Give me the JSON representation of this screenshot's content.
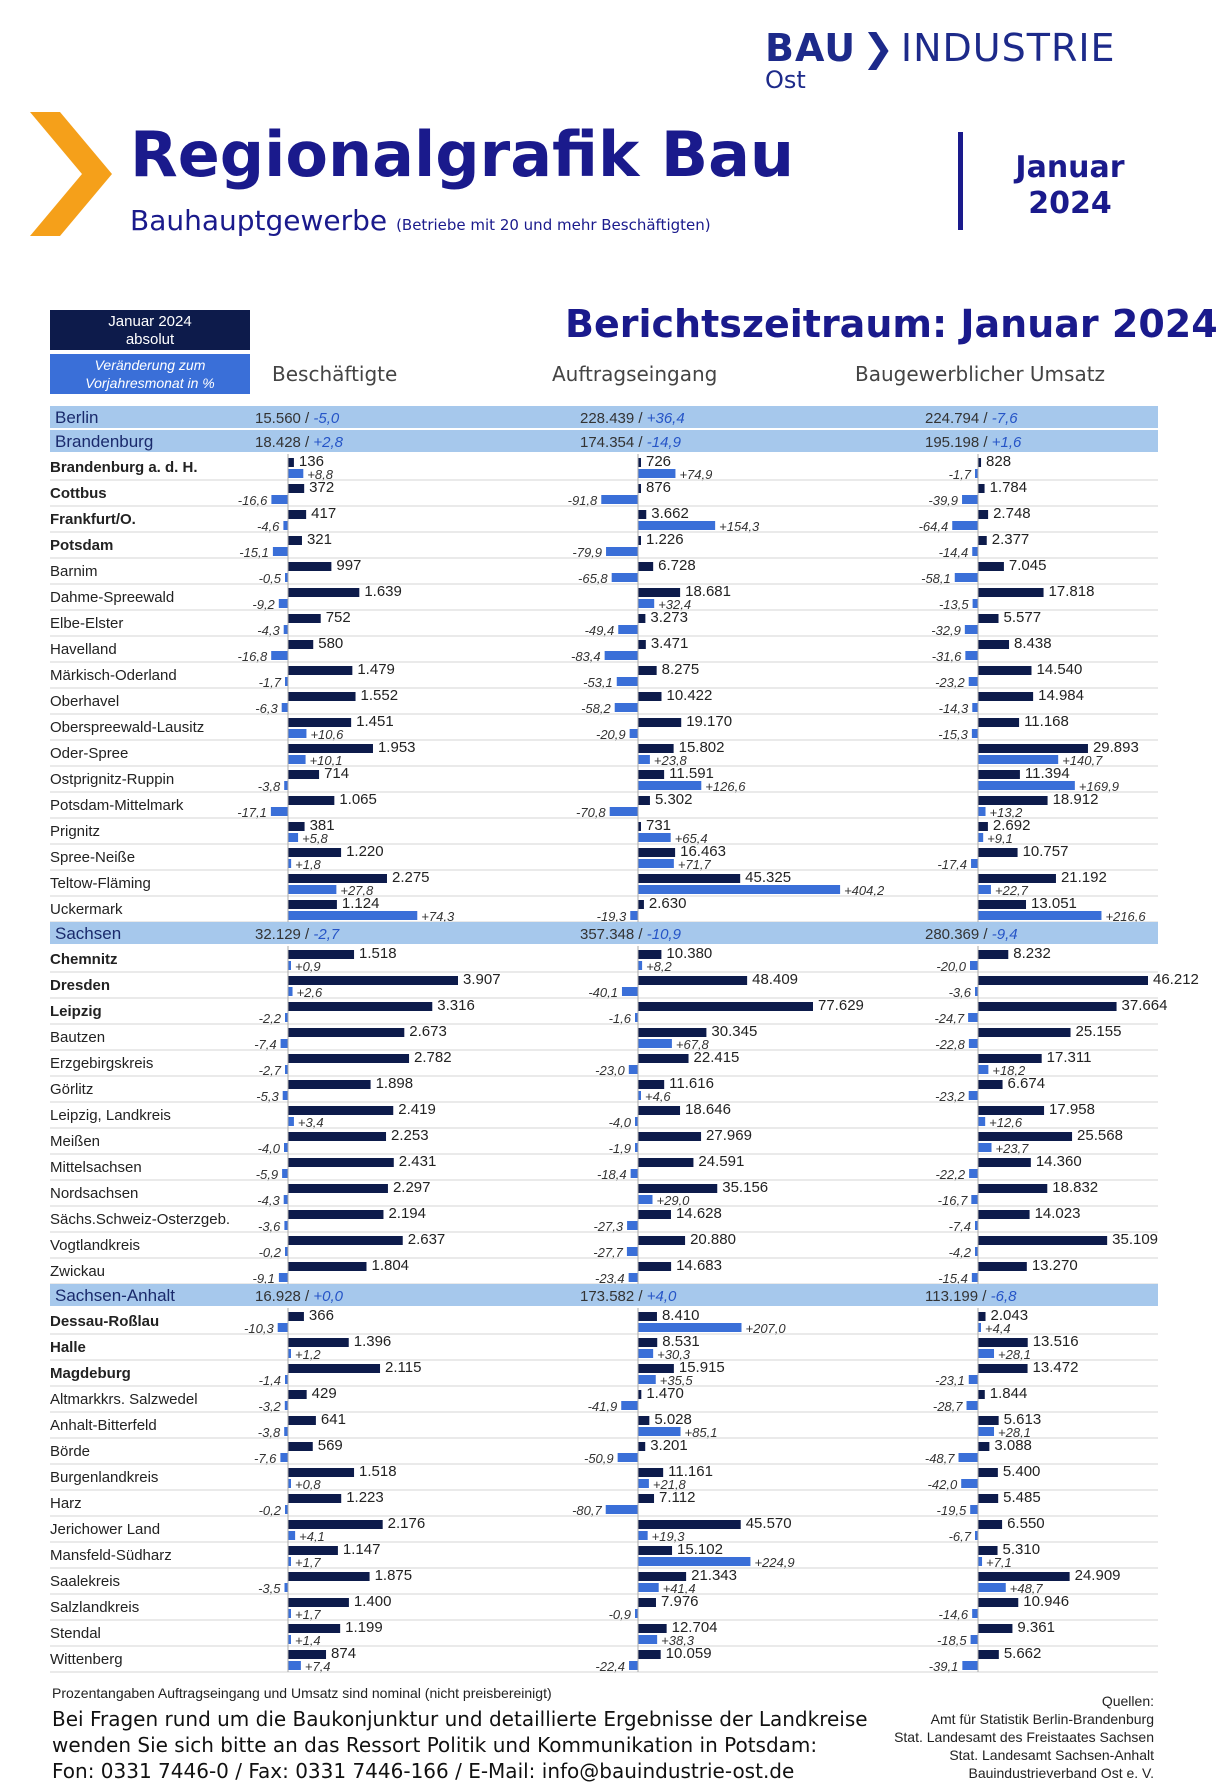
{
  "logo": {
    "brand_bold": "BAU",
    "brand_rest": "INDUSTRIE",
    "region": "Ost"
  },
  "header": {
    "title": "Regionalgrafik Bau",
    "subtitle": "Bauhauptgewerbe",
    "subtitle_note": "(Betriebe mit 20 und mehr Beschäftigten)",
    "month": "Januar",
    "year": "2024"
  },
  "legend": {
    "absolute_line1": "Januar 2024",
    "absolute_line2": "absolut",
    "change_line1": "Veränderung zum",
    "change_line2": "Vorjahresmonat in %"
  },
  "period": "Berichtszeitraum: Januar 2024",
  "columns": [
    "Beschäftigte",
    "Auftragseingang",
    "Baugewerblicher Umsatz"
  ],
  "colors": {
    "absolute": "#0d1b4b",
    "change": "#3a6fd8",
    "state_band": "#a6c8ec",
    "change_text": "#2554c7"
  },
  "chart_data": {
    "type": "bar",
    "description_units": "value = absolute Januar 2024; change = Veränderung zum Vorjahresmonat in %",
    "states": [
      {
        "name": "Berlin",
        "values": [
          "15.560",
          "228.439",
          "224.794"
        ],
        "changes": [
          "-5,0",
          "+36,4",
          "-7,6"
        ]
      },
      {
        "name": "Brandenburg",
        "values": [
          "18.428",
          "174.354",
          "195.198"
        ],
        "changes": [
          "+2,8",
          "-14,9",
          "+1,6"
        ],
        "districts": [
          {
            "name": "Brandenburg a. d. H.",
            "bold": true,
            "b": [
              136,
              8.8
            ],
            "a": [
              726,
              74.9
            ],
            "u": [
              828,
              -1.7
            ]
          },
          {
            "name": "Cottbus",
            "bold": true,
            "b": [
              372,
              -16.6
            ],
            "a": [
              876,
              -91.8
            ],
            "u": [
              1784,
              -39.9
            ]
          },
          {
            "name": "Frankfurt/O.",
            "bold": true,
            "b": [
              417,
              -4.6
            ],
            "a": [
              3662,
              154.3
            ],
            "u": [
              2748,
              -64.4
            ]
          },
          {
            "name": "Potsdam",
            "bold": true,
            "b": [
              321,
              -15.1
            ],
            "a": [
              1226,
              -79.9
            ],
            "u": [
              2377,
              -14.4
            ]
          },
          {
            "name": "Barnim",
            "b": [
              997,
              -0.5
            ],
            "a": [
              6728,
              -65.8
            ],
            "u": [
              7045,
              -58.1
            ]
          },
          {
            "name": "Dahme-Spreewald",
            "b": [
              1639,
              -9.2
            ],
            "a": [
              18681,
              32.4
            ],
            "u": [
              17818,
              -13.5
            ]
          },
          {
            "name": "Elbe-Elster",
            "b": [
              752,
              -4.3
            ],
            "a": [
              3273,
              -49.4
            ],
            "u": [
              5577,
              -32.9
            ]
          },
          {
            "name": "Havelland",
            "b": [
              580,
              -16.8
            ],
            "a": [
              3471,
              -83.4
            ],
            "u": [
              8438,
              -31.6
            ]
          },
          {
            "name": "Märkisch-Oderland",
            "b": [
              1479,
              -1.7
            ],
            "a": [
              8275,
              -53.1
            ],
            "u": [
              14540,
              -23.2
            ]
          },
          {
            "name": "Oberhavel",
            "b": [
              1552,
              -6.3
            ],
            "a": [
              10422,
              -58.2
            ],
            "u": [
              14984,
              -14.3
            ]
          },
          {
            "name": "Oberspreewald-Lausitz",
            "b": [
              1451,
              10.6
            ],
            "a": [
              19170,
              -20.9
            ],
            "u": [
              11168,
              -15.3
            ]
          },
          {
            "name": "Oder-Spree",
            "b": [
              1953,
              10.1
            ],
            "a": [
              15802,
              23.8
            ],
            "u": [
              29893,
              140.7
            ]
          },
          {
            "name": "Ostprignitz-Ruppin",
            "b": [
              714,
              -3.8
            ],
            "a": [
              11591,
              126.6
            ],
            "u": [
              11394,
              169.9
            ]
          },
          {
            "name": "Potsdam-Mittelmark",
            "b": [
              1065,
              -17.1
            ],
            "a": [
              5302,
              -70.8
            ],
            "u": [
              18912,
              13.2
            ]
          },
          {
            "name": "Prignitz",
            "b": [
              381,
              5.8
            ],
            "a": [
              731,
              65.4
            ],
            "u": [
              2692,
              9.1
            ]
          },
          {
            "name": "Spree-Neiße",
            "b": [
              1220,
              1.8
            ],
            "a": [
              16463,
              71.7
            ],
            "u": [
              10757,
              -17.4
            ]
          },
          {
            "name": "Teltow-Fläming",
            "b": [
              2275,
              27.8
            ],
            "a": [
              45325,
              404.2
            ],
            "u": [
              21192,
              22.7
            ]
          },
          {
            "name": "Uckermark",
            "b": [
              1124,
              74.3
            ],
            "a": [
              2630,
              -19.3
            ],
            "u": [
              13051,
              216.6
            ]
          }
        ]
      },
      {
        "name": "Sachsen",
        "values": [
          "32.129",
          "357.348",
          "280.369"
        ],
        "changes": [
          "-2,7",
          "-10,9",
          "-9,4"
        ],
        "districts": [
          {
            "name": "Chemnitz",
            "bold": true,
            "b": [
              1518,
              0.9
            ],
            "a": [
              10380,
              8.2
            ],
            "u": [
              8232,
              -20.0
            ]
          },
          {
            "name": "Dresden",
            "bold": true,
            "b": [
              3907,
              2.6
            ],
            "a": [
              48409,
              -40.1
            ],
            "u": [
              46212,
              -3.6
            ]
          },
          {
            "name": "Leipzig",
            "bold": true,
            "b": [
              3316,
              -2.2
            ],
            "a": [
              77629,
              -1.6
            ],
            "u": [
              37664,
              -24.7
            ]
          },
          {
            "name": "Bautzen",
            "b": [
              2673,
              -7.4
            ],
            "a": [
              30345,
              67.8
            ],
            "u": [
              25155,
              -22.8
            ]
          },
          {
            "name": "Erzgebirgskreis",
            "b": [
              2782,
              -2.7
            ],
            "a": [
              22415,
              -23.0
            ],
            "u": [
              17311,
              18.2
            ]
          },
          {
            "name": "Görlitz",
            "b": [
              1898,
              -5.3
            ],
            "a": [
              11616,
              4.6
            ],
            "u": [
              6674,
              -23.2
            ]
          },
          {
            "name": "Leipzig, Landkreis",
            "b": [
              2419,
              3.4
            ],
            "a": [
              18646,
              -4.0
            ],
            "u": [
              17958,
              12.6
            ]
          },
          {
            "name": "Meißen",
            "b": [
              2253,
              -4.0
            ],
            "a": [
              27969,
              -1.9
            ],
            "u": [
              25568,
              23.7
            ]
          },
          {
            "name": "Mittelsachsen",
            "b": [
              2431,
              -5.9
            ],
            "a": [
              24591,
              -18.4
            ],
            "u": [
              14360,
              -22.2
            ]
          },
          {
            "name": "Nordsachsen",
            "b": [
              2297,
              -4.3
            ],
            "a": [
              35156,
              29.0
            ],
            "u": [
              18832,
              -16.7
            ]
          },
          {
            "name": "Sächs.Schweiz-Osterzgeb.",
            "b": [
              2194,
              -3.6
            ],
            "a": [
              14628,
              -27.3
            ],
            "u": [
              14023,
              -7.4
            ]
          },
          {
            "name": "Vogtlandkreis",
            "b": [
              2637,
              -0.2
            ],
            "a": [
              20880,
              -27.7
            ],
            "u": [
              35109,
              -4.2
            ]
          },
          {
            "name": "Zwickau",
            "b": [
              1804,
              -9.1
            ],
            "a": [
              14683,
              -23.4
            ],
            "u": [
              13270,
              -15.4
            ]
          }
        ]
      },
      {
        "name": "Sachsen-Anhalt",
        "values": [
          "16.928",
          "173.582",
          "113.199"
        ],
        "changes": [
          "+0,0",
          "+4,0",
          "-6,8"
        ],
        "districts": [
          {
            "name": "Dessau-Roßlau",
            "bold": true,
            "b": [
              366,
              -10.3
            ],
            "a": [
              8410,
              207.0
            ],
            "u": [
              2043,
              4.4
            ]
          },
          {
            "name": "Halle",
            "bold": true,
            "b": [
              1396,
              1.2
            ],
            "a": [
              8531,
              30.3
            ],
            "u": [
              13516,
              28.1
            ]
          },
          {
            "name": "Magdeburg",
            "bold": true,
            "b": [
              2115,
              -1.4
            ],
            "a": [
              15915,
              35.5
            ],
            "u": [
              13472,
              -23.1
            ]
          },
          {
            "name": "Altmarkkrs. Salzwedel",
            "b": [
              429,
              -3.2
            ],
            "a": [
              1470,
              -41.9
            ],
            "u": [
              1844,
              -28.7
            ]
          },
          {
            "name": "Anhalt-Bitterfeld",
            "b": [
              641,
              -3.8
            ],
            "a": [
              5028,
              85.1
            ],
            "u": [
              5613,
              28.1
            ]
          },
          {
            "name": "Börde",
            "b": [
              569,
              -7.6
            ],
            "a": [
              3201,
              -50.9
            ],
            "u": [
              3088,
              -48.7
            ]
          },
          {
            "name": "Burgenlandkreis",
            "b": [
              1518,
              0.8
            ],
            "a": [
              11161,
              21.8
            ],
            "u": [
              5400,
              -42.0
            ]
          },
          {
            "name": "Harz",
            "b": [
              1223,
              -0.2
            ],
            "a": [
              7112,
              -80.7
            ],
            "u": [
              5485,
              -19.5
            ]
          },
          {
            "name": "Jerichower Land",
            "b": [
              2176,
              4.1
            ],
            "a": [
              45570,
              19.3
            ],
            "u": [
              6550,
              -6.7
            ]
          },
          {
            "name": "Mansfeld-Südharz",
            "b": [
              1147,
              1.7
            ],
            "a": [
              15102,
              224.9
            ],
            "u": [
              5310,
              7.1
            ]
          },
          {
            "name": "Saalekreis",
            "b": [
              1875,
              -3.5
            ],
            "a": [
              21343,
              41.4
            ],
            "u": [
              24909,
              48.7
            ]
          },
          {
            "name": "Salzlandkreis",
            "b": [
              1400,
              1.7
            ],
            "a": [
              7976,
              -0.9
            ],
            "u": [
              10946,
              -14.6
            ]
          },
          {
            "name": "Stendal",
            "b": [
              1199,
              1.4
            ],
            "a": [
              12704,
              38.3
            ],
            "u": [
              9361,
              -18.5
            ]
          },
          {
            "name": "Wittenberg",
            "b": [
              874,
              7.4
            ],
            "a": [
              10059,
              -22.4
            ],
            "u": [
              5662,
              -39.1
            ]
          }
        ]
      }
    ]
  },
  "footer": {
    "note": "Prozentangaben Auftragseingang und Umsatz sind nominal (nicht preisbereinigt)",
    "contact_line1": "Bei Fragen rund um die Baukonjunktur und detaillierte Ergebnisse der Landkreise",
    "contact_line2": "wenden Sie sich bitte an das Ressort Politik und Kommunikation in Potsdam:",
    "contact_line3": "Fon: 0331 7446-0 / Fax: 0331 7446-166 / E-Mail: info@bauindustrie-ost.de",
    "sources_title": "Quellen:",
    "sources": [
      "Amt für Statistik Berlin-Brandenburg",
      "Stat. Landesamt des Freistaates Sachsen",
      "Stat. Landesamt Sachsen-Anhalt",
      "Bauindustrieverband Ost e. V."
    ]
  }
}
